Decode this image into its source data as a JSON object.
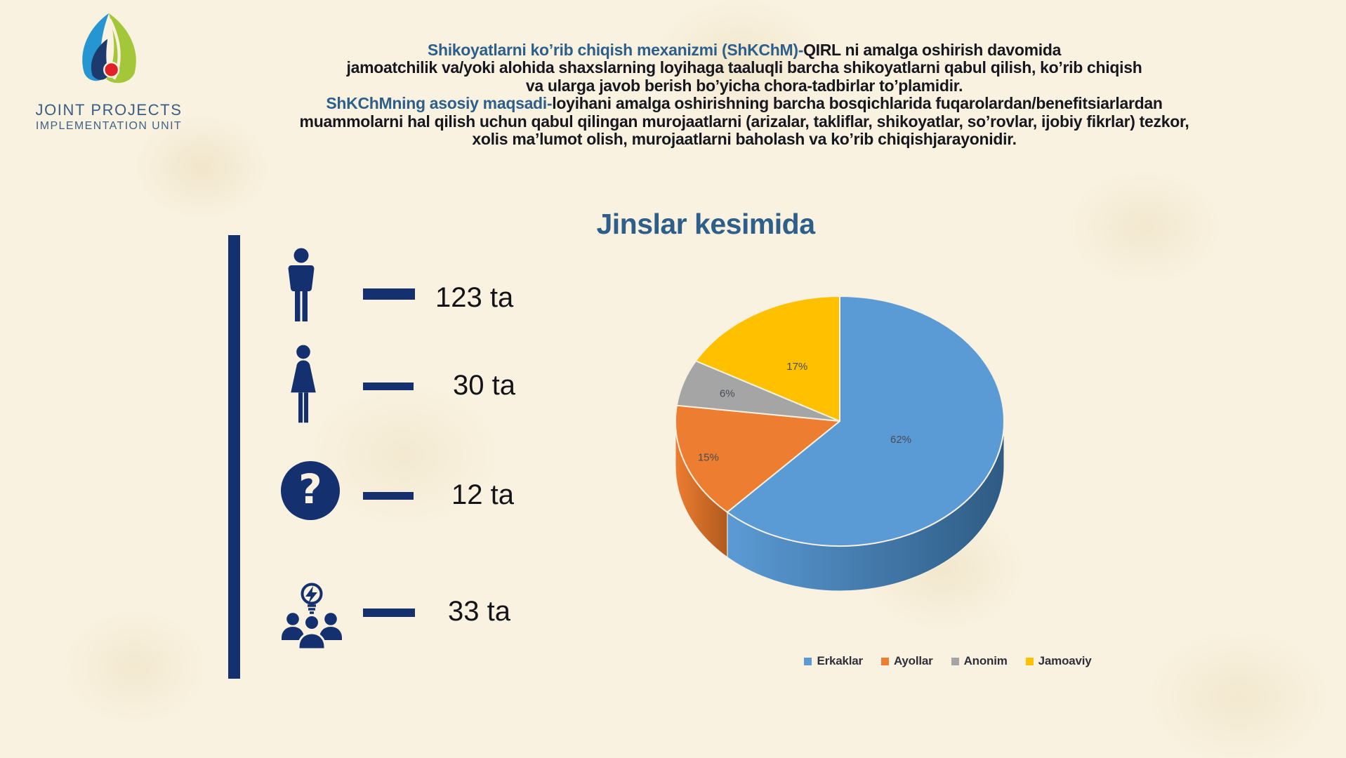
{
  "logo": {
    "line1": "JOINT PROJECTS",
    "line2": "IMPLEMENTATION UNIT"
  },
  "intro_lines": [
    {
      "lead": "Shikoyatlarni ko’rib chiqish mexanizmi (ShKChM)-",
      "rest": "QIRL ni amalga oshirish davomida"
    },
    {
      "rest": "jamoatchilik va/yoki alohida shaxslarning loyihaga taaluqli barcha shikoyatlarni qabul qilish, ko’rib chiqish"
    },
    {
      "rest": "va ularga javob berish bo’yicha chora-tadbirlar to’plamidir."
    },
    {
      "lead": "ShKChMning asosiy maqsadi-",
      "rest": "loyihani amalga oshirishning barcha bosqichlarida fuqarolardan/benefitsiarlardan"
    },
    {
      "rest": "muammolarni hal qilish uchun qabul qilingan murojaatlarni (arizalar, takliflar, shikoyatlar, so’rovlar, ijobiy fikrlar) tezkor,"
    },
    {
      "rest": "xolis ma’lumot olish, murojaatlarni baholash va ko’rib chiqishjarayonidir."
    }
  ],
  "section_title": "Jinslar kesimida",
  "stats": [
    {
      "icon": "man-icon",
      "value": "123 ta"
    },
    {
      "icon": "woman-icon",
      "value": "30 ta"
    },
    {
      "icon": "question-icon",
      "glyph": "?",
      "value": "12 ta"
    },
    {
      "icon": "group-idea-icon",
      "value": "33 ta"
    }
  ],
  "chart_data": {
    "type": "pie",
    "title": "Jinslar kesimida",
    "labels": [
      "Erkaklar",
      "Ayollar",
      "Anonim",
      "Jamoaviy"
    ],
    "values": [
      62,
      15,
      6,
      17
    ],
    "value_labels": [
      "62%",
      "15%",
      "6%",
      "17%"
    ],
    "colors": [
      "#5B9BD5",
      "#ED7D31",
      "#A5A5A5",
      "#FFC000"
    ],
    "side_colors": [
      "#2E5B84",
      "#B05A1E",
      "#7F7F7F",
      "#BF9000"
    ],
    "start_angle_deg": 0,
    "direction": "clockwise",
    "style": "3d",
    "legend_position": "bottom"
  },
  "ui_colors": {
    "background": "#f9f2e0",
    "navy": "#14306e",
    "heading_blue": "#2d5f8a",
    "body_text": "#17171f"
  }
}
